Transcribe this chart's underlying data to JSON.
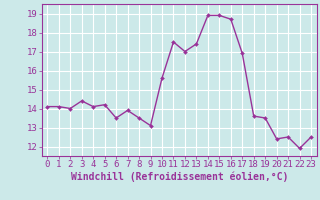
{
  "x": [
    0,
    1,
    2,
    3,
    4,
    5,
    6,
    7,
    8,
    9,
    10,
    11,
    12,
    13,
    14,
    15,
    16,
    17,
    18,
    19,
    20,
    21,
    22,
    23
  ],
  "y": [
    14.1,
    14.1,
    14.0,
    14.4,
    14.1,
    14.2,
    13.5,
    13.9,
    13.5,
    13.1,
    15.6,
    17.5,
    17.0,
    17.4,
    18.9,
    18.9,
    18.7,
    16.9,
    13.6,
    13.5,
    12.4,
    12.5,
    11.9,
    12.5
  ],
  "line_color": "#993399",
  "marker_color": "#993399",
  "bg_color": "#cce9e9",
  "grid_color": "#ffffff",
  "xlabel": "Windchill (Refroidissement éolien,°C)",
  "ylabel": "",
  "ylim": [
    11.5,
    19.5
  ],
  "xlim": [
    -0.5,
    23.5
  ],
  "yticks": [
    12,
    13,
    14,
    15,
    16,
    17,
    18,
    19
  ],
  "xticks": [
    0,
    1,
    2,
    3,
    4,
    5,
    6,
    7,
    8,
    9,
    10,
    11,
    12,
    13,
    14,
    15,
    16,
    17,
    18,
    19,
    20,
    21,
    22,
    23
  ],
  "tick_fontsize": 6.5,
  "xlabel_fontsize": 7,
  "label_color": "#993399",
  "tick_color": "#993399"
}
